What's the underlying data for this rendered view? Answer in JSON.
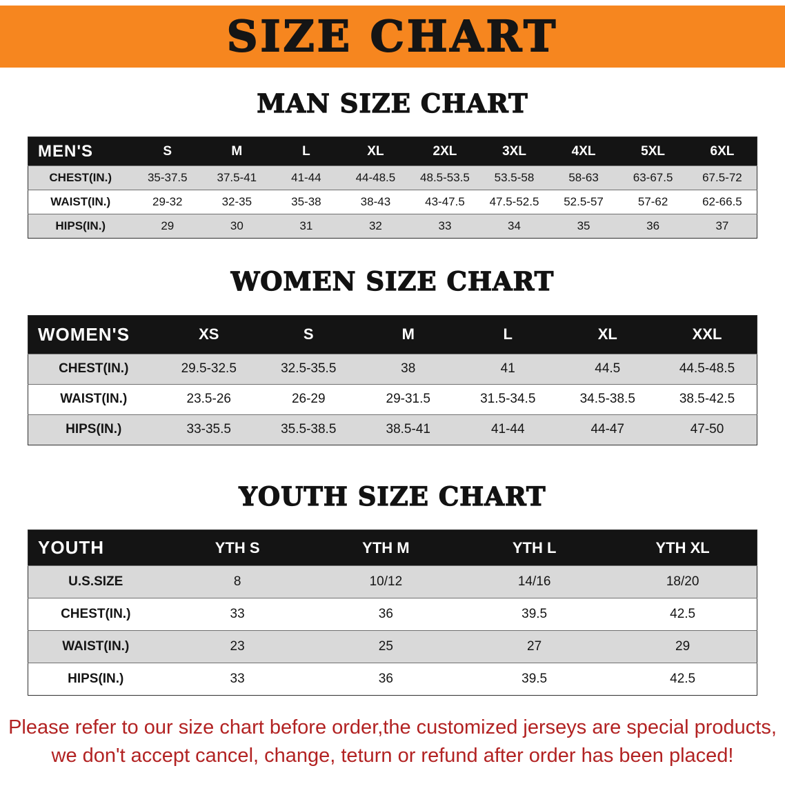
{
  "banner": {
    "title": "SIZE CHART"
  },
  "colors": {
    "banner_bg": "#f6861f",
    "table_header_bg": "#141414",
    "row_alt_bg": "#d9d9d9",
    "notice_text": "#b22222"
  },
  "sections": [
    {
      "heading": "MAN SIZE CHART",
      "header_label": "MEN'S",
      "columns": [
        "S",
        "M",
        "L",
        "XL",
        "2XL",
        "3XL",
        "4XL",
        "5XL",
        "6XL"
      ],
      "rows": [
        {
          "label": "CHEST(IN.)",
          "values": [
            "35-37.5",
            "37.5-41",
            "41-44",
            "44-48.5",
            "48.5-53.5",
            "53.5-58",
            "58-63",
            "63-67.5",
            "67.5-72"
          ]
        },
        {
          "label": "WAIST(IN.)",
          "values": [
            "29-32",
            "32-35",
            "35-38",
            "38-43",
            "43-47.5",
            "47.5-52.5",
            "52.5-57",
            "57-62",
            "62-66.5"
          ]
        },
        {
          "label": "HIPS(IN.)",
          "values": [
            "29",
            "30",
            "31",
            "32",
            "33",
            "34",
            "35",
            "36",
            "37"
          ]
        }
      ]
    },
    {
      "heading": "WOMEN SIZE CHART",
      "header_label": "WOMEN'S",
      "columns": [
        "XS",
        "S",
        "M",
        "L",
        "XL",
        "XXL"
      ],
      "rows": [
        {
          "label": "CHEST(IN.)",
          "values": [
            "29.5-32.5",
            "32.5-35.5",
            "38",
            "41",
            "44.5",
            "44.5-48.5"
          ]
        },
        {
          "label": "WAIST(IN.)",
          "values": [
            "23.5-26",
            "26-29",
            "29-31.5",
            "31.5-34.5",
            "34.5-38.5",
            "38.5-42.5"
          ]
        },
        {
          "label": "HIPS(IN.)",
          "values": [
            "33-35.5",
            "35.5-38.5",
            "38.5-41",
            "41-44",
            "44-47",
            "47-50"
          ]
        }
      ]
    },
    {
      "heading": "YOUTH SIZE CHART",
      "header_label": "YOUTH",
      "columns": [
        "YTH S",
        "YTH M",
        "YTH L",
        "YTH XL"
      ],
      "rows": [
        {
          "label": "U.S.SIZE",
          "values": [
            "8",
            "10/12",
            "14/16",
            "18/20"
          ]
        },
        {
          "label": "CHEST(IN.)",
          "values": [
            "33",
            "36",
            "39.5",
            "42.5"
          ]
        },
        {
          "label": "WAIST(IN.)",
          "values": [
            "23",
            "25",
            "27",
            "29"
          ]
        },
        {
          "label": "HIPS(IN.)",
          "values": [
            "33",
            "36",
            "39.5",
            "42.5"
          ]
        }
      ]
    }
  ],
  "notice": {
    "lines": [
      "Please refer to our size chart before order,the customized jerseys are special products,",
      "we don't accept cancel, change, teturn or refund after order has been placed!"
    ]
  }
}
